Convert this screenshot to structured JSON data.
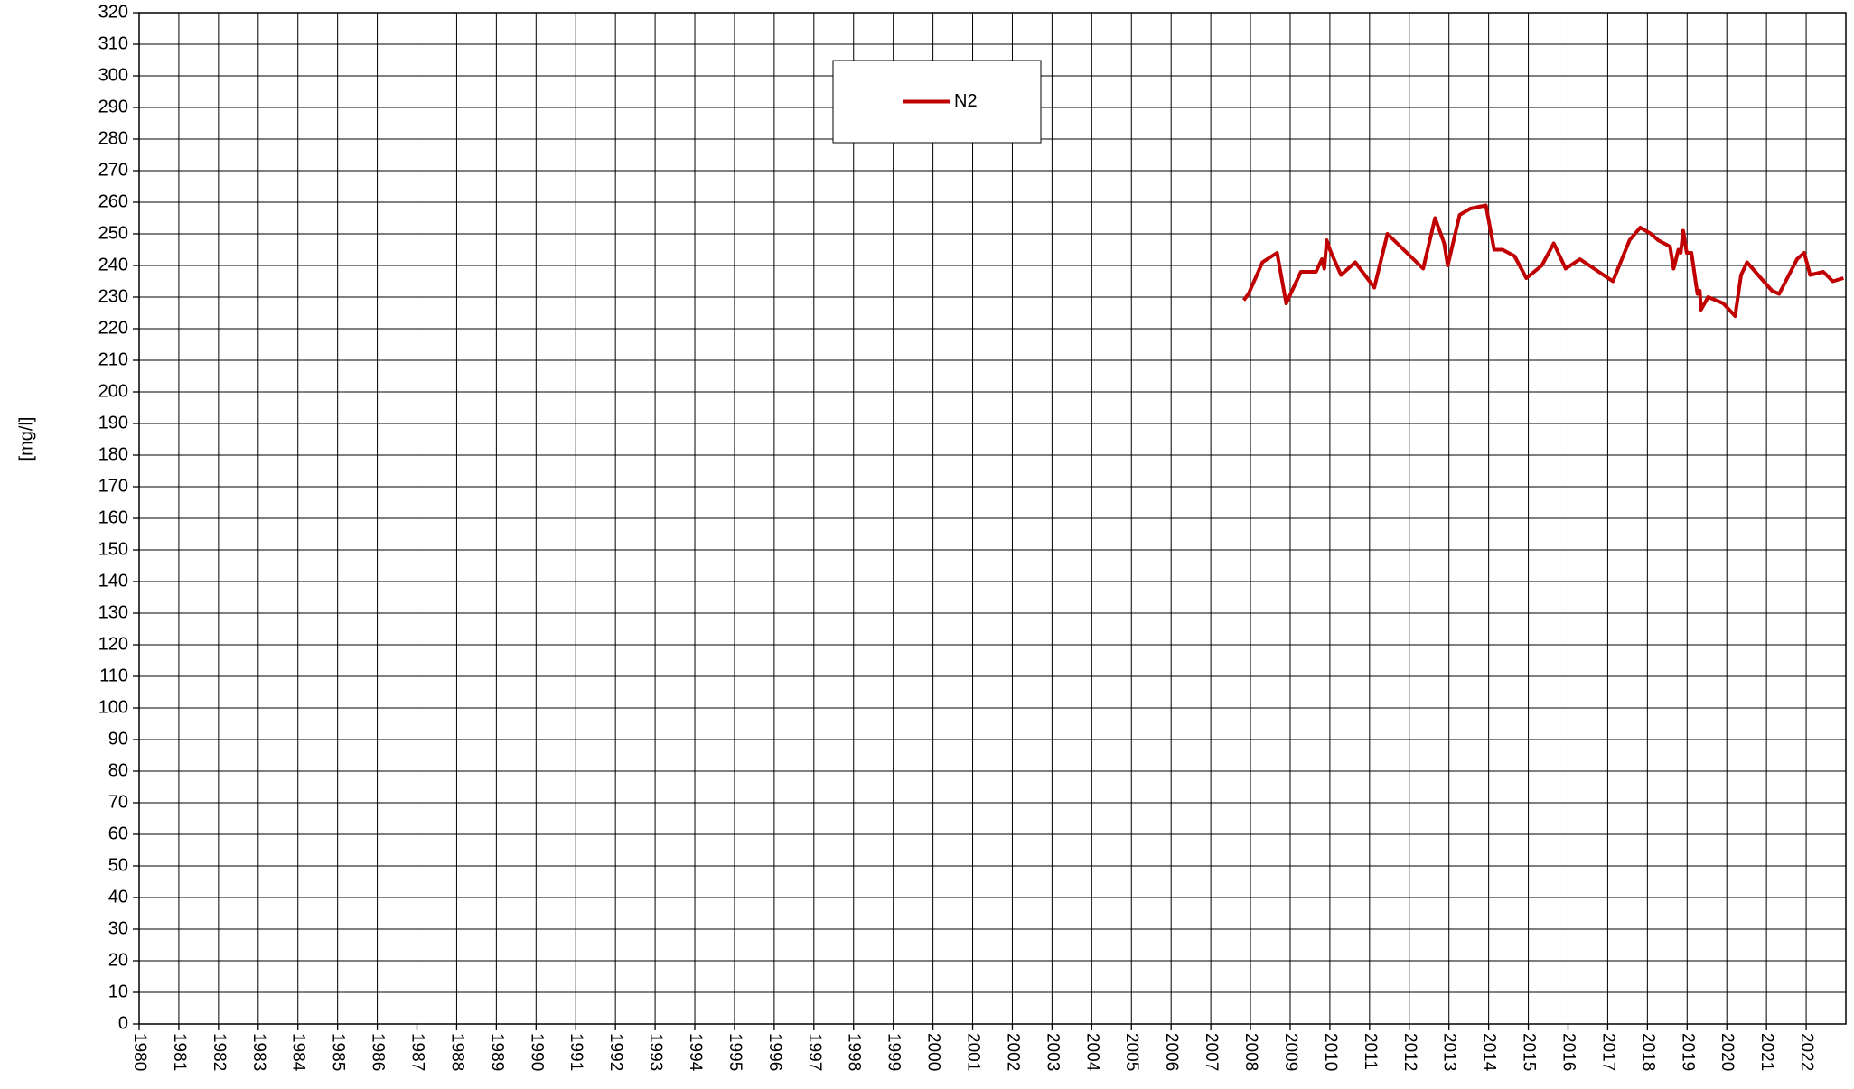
{
  "chart_data": {
    "type": "line",
    "ylabel": "[mg/l]",
    "xlim": [
      1980,
      2023
    ],
    "xticks": [
      1980,
      1981,
      1982,
      1983,
      1984,
      1985,
      1986,
      1987,
      1988,
      1989,
      1990,
      1991,
      1992,
      1993,
      1994,
      1995,
      1996,
      1997,
      1998,
      1999,
      2000,
      2001,
      2002,
      2003,
      2004,
      2005,
      2006,
      2007,
      2008,
      2009,
      2010,
      2011,
      2012,
      2013,
      2014,
      2015,
      2016,
      2017,
      2018,
      2019,
      2020,
      2021,
      2022
    ],
    "ylim": [
      0,
      320
    ],
    "yticks": [
      0,
      10,
      20,
      30,
      40,
      50,
      60,
      70,
      80,
      90,
      100,
      110,
      120,
      130,
      140,
      150,
      160,
      170,
      180,
      190,
      200,
      210,
      220,
      230,
      240,
      250,
      260,
      270,
      280,
      290,
      300,
      310,
      320
    ],
    "grid": true,
    "legend": "top",
    "x": [
      2007.83,
      2007.95,
      2008.3,
      2008.67,
      2008.9,
      2009.27,
      2009.65,
      2009.8,
      2009.86,
      2009.92,
      2010.0,
      2010.28,
      2010.64,
      2011.12,
      2011.45,
      2012.35,
      2012.65,
      2012.88,
      2012.97,
      2013.27,
      2013.54,
      2013.93,
      2014.14,
      2014.35,
      2014.65,
      2014.95,
      2015.34,
      2015.64,
      2015.94,
      2016.3,
      2017.13,
      2017.55,
      2017.82,
      2018.09,
      2018.27,
      2018.57,
      2018.66,
      2018.78,
      2018.84,
      2018.9,
      2018.99,
      2019.11,
      2019.26,
      2019.32,
      2019.35,
      2019.53,
      2019.91,
      2020.21,
      2020.36,
      2020.51,
      2021.14,
      2021.32,
      2021.77,
      2021.95,
      2022.1,
      2022.43,
      2022.67,
      2022.94
    ],
    "series": [
      {
        "name": "N2",
        "color": "#c00000",
        "values": [
          229,
          231,
          241,
          244,
          228,
          238,
          238,
          242,
          239,
          248,
          245,
          237,
          241,
          233,
          250,
          239,
          255,
          247,
          240,
          256,
          258,
          259,
          245,
          245,
          243,
          236,
          240,
          247,
          239,
          242,
          235,
          248,
          252,
          250,
          248,
          246,
          239,
          245,
          244,
          251,
          244,
          244,
          231,
          232,
          226,
          230,
          228,
          224,
          237,
          241,
          232,
          231,
          242,
          244,
          237,
          238,
          235,
          236
        ]
      }
    ]
  }
}
